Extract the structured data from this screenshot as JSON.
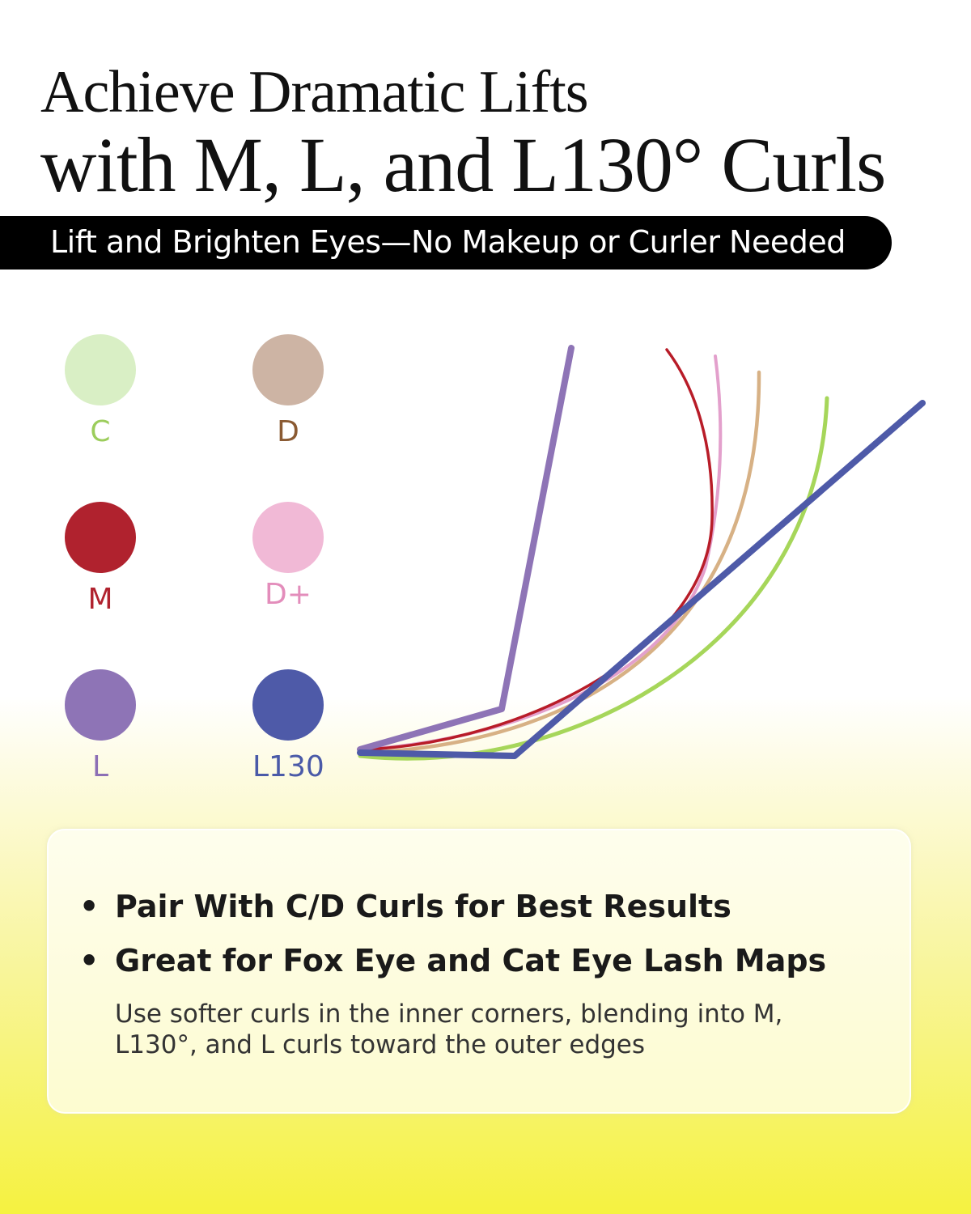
{
  "header": {
    "title_line1": "Achieve Dramatic Lifts",
    "title_line2": "with M, L, and L130° Curls",
    "subtitle": "Lift and Brighten Eyes—No Makeup or Curler Needed"
  },
  "curls": [
    {
      "label": "C",
      "dot_color": "#d9efc5",
      "text_color": "#9ccd5c",
      "line_color": "#a6d65a"
    },
    {
      "label": "D",
      "dot_color": "#cdb4a4",
      "text_color": "#8a5a32",
      "line_color": "#d7b185"
    },
    {
      "label": "M",
      "dot_color": "#b0222e",
      "text_color": "#b0222e",
      "line_color": "#b81c28"
    },
    {
      "label": "D+",
      "dot_color": "#f1b9d6",
      "text_color": "#e38dbb",
      "line_color": "#e3a0cc"
    },
    {
      "label": "L",
      "dot_color": "#8e74b6",
      "text_color": "#8c6fb5",
      "line_color": "#8e74b6"
    },
    {
      "label": "L130",
      "dot_color": "#4e5aa8",
      "text_color": "#4a5aa8",
      "line_color": "#4e5aa8"
    }
  ],
  "info": {
    "bullets": [
      "Pair With C/D Curls for Best Results",
      "Great for Fox Eye and Cat Eye Lash Maps"
    ],
    "bullet_symbol": "•",
    "note": "Use softer curls in the inner corners, blending into M, L130°, and L curls toward the outer edges"
  }
}
